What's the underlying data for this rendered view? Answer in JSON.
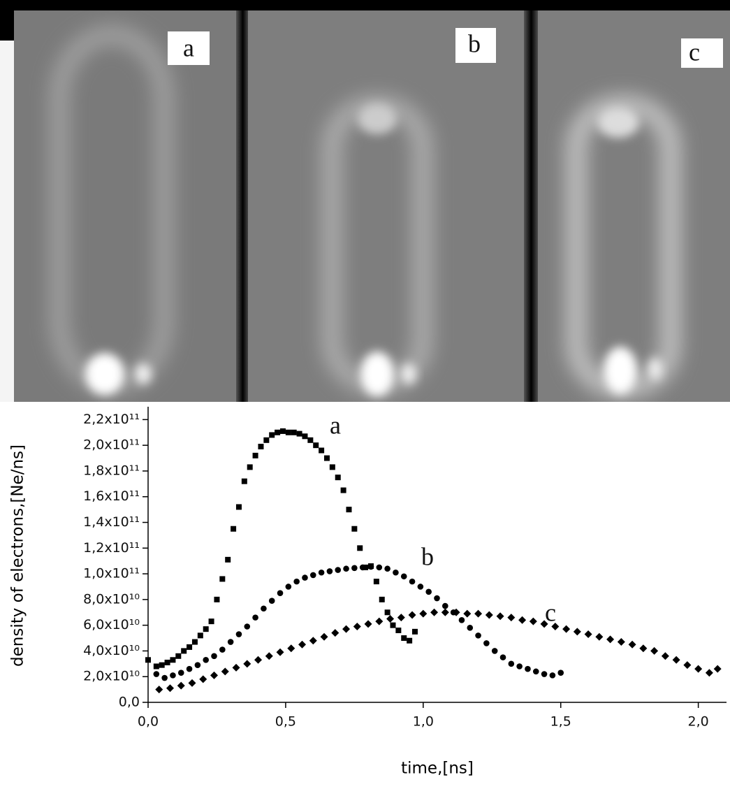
{
  "images": [
    {
      "label": "a"
    },
    {
      "label": "b"
    },
    {
      "label": "c"
    }
  ],
  "chart_data": {
    "type": "scatter",
    "xlabel": "time,[ns]",
    "ylabel": "density of electrons,[Ne/ns]",
    "xlim": [
      0,
      2.1
    ],
    "ylim": [
      0,
      230000000000.0
    ],
    "xticks": [
      {
        "value": 0,
        "label": "0,0"
      },
      {
        "value": 0.5,
        "label": "0,5"
      },
      {
        "value": 1.0,
        "label": "1,0"
      },
      {
        "value": 1.5,
        "label": "1,5"
      },
      {
        "value": 2.0,
        "label": "2,0"
      }
    ],
    "yticks": [
      {
        "value": 0,
        "label": "0,0"
      },
      {
        "value": 20000000000.0,
        "label": "2,0x10¹⁰"
      },
      {
        "value": 40000000000.0,
        "label": "4,0x10¹⁰"
      },
      {
        "value": 60000000000.0,
        "label": "6,0x10¹⁰"
      },
      {
        "value": 80000000000.0,
        "label": "8,0x10¹⁰"
      },
      {
        "value": 100000000000.0,
        "label": "1,0x10¹¹"
      },
      {
        "value": 120000000000.0,
        "label": "1,2x10¹¹"
      },
      {
        "value": 140000000000.0,
        "label": "1,4x10¹¹"
      },
      {
        "value": 160000000000.0,
        "label": "1,6x10¹¹"
      },
      {
        "value": 180000000000.0,
        "label": "1,8x10¹¹"
      },
      {
        "value": 200000000000.0,
        "label": "2,0x10¹¹"
      },
      {
        "value": 220000000000.0,
        "label": "2,2x10¹¹"
      }
    ],
    "series": [
      {
        "name": "a",
        "marker": "square",
        "color": "#000000",
        "x": [
          0.0,
          0.03,
          0.05,
          0.07,
          0.09,
          0.11,
          0.13,
          0.15,
          0.17,
          0.19,
          0.21,
          0.23,
          0.25,
          0.27,
          0.29,
          0.31,
          0.33,
          0.35,
          0.37,
          0.39,
          0.41,
          0.43,
          0.45,
          0.47,
          0.49,
          0.51,
          0.53,
          0.55,
          0.57,
          0.59,
          0.61,
          0.63,
          0.65,
          0.67,
          0.69,
          0.71,
          0.73,
          0.75,
          0.77,
          0.79,
          0.81,
          0.83,
          0.85,
          0.87,
          0.89,
          0.91,
          0.93,
          0.95,
          0.97
        ],
        "values": [
          33000000000.0,
          28000000000.0,
          29000000000.0,
          31000000000.0,
          33000000000.0,
          36000000000.0,
          40000000000.0,
          43000000000.0,
          47000000000.0,
          52000000000.0,
          57000000000.0,
          63000000000.0,
          80000000000.0,
          96000000000.0,
          111000000000.0,
          135000000000.0,
          152000000000.0,
          172000000000.0,
          183000000000.0,
          192000000000.0,
          199000000000.0,
          204000000000.0,
          208000000000.0,
          210000000000.0,
          211000000000.0,
          210000000000.0,
          210000000000.0,
          209000000000.0,
          207000000000.0,
          204000000000.0,
          200000000000.0,
          196000000000.0,
          190000000000.0,
          183000000000.0,
          175000000000.0,
          165000000000.0,
          150000000000.0,
          135000000000.0,
          120000000000.0,
          105000000000.0,
          106000000000.0,
          94000000000.0,
          80000000000.0,
          70000000000.0,
          60000000000.0,
          56000000000.0,
          50000000000.0,
          48000000000.0,
          55000000000.0
        ]
      },
      {
        "name": "b",
        "marker": "circle",
        "color": "#000000",
        "x": [
          0.03,
          0.06,
          0.09,
          0.12,
          0.15,
          0.18,
          0.21,
          0.24,
          0.27,
          0.3,
          0.33,
          0.36,
          0.39,
          0.42,
          0.45,
          0.48,
          0.51,
          0.54,
          0.57,
          0.6,
          0.63,
          0.66,
          0.69,
          0.72,
          0.75,
          0.78,
          0.81,
          0.84,
          0.87,
          0.9,
          0.93,
          0.96,
          0.99,
          1.02,
          1.05,
          1.08,
          1.11,
          1.14,
          1.17,
          1.2,
          1.23,
          1.26,
          1.29,
          1.32,
          1.35,
          1.38,
          1.41,
          1.44,
          1.47,
          1.5
        ],
        "values": [
          22000000000.0,
          19000000000.0,
          21000000000.0,
          23000000000.0,
          26000000000.0,
          29000000000.0,
          33000000000.0,
          36000000000.0,
          41000000000.0,
          47000000000.0,
          53000000000.0,
          59000000000.0,
          66000000000.0,
          73000000000.0,
          79000000000.0,
          85000000000.0,
          90000000000.0,
          94000000000.0,
          97000000000.0,
          99000000000.0,
          101000000000.0,
          102000000000.0,
          103000000000.0,
          104000000000.0,
          104500000000.0,
          105000000000.0,
          105500000000.0,
          105000000000.0,
          104000000000.0,
          101000000000.0,
          98000000000.0,
          94000000000.0,
          90000000000.0,
          86000000000.0,
          81000000000.0,
          75000000000.0,
          70000000000.0,
          64000000000.0,
          58000000000.0,
          52000000000.0,
          46000000000.0,
          40000000000.0,
          35000000000.0,
          30000000000.0,
          28000000000.0,
          26000000000.0,
          24000000000.0,
          22000000000.0,
          21000000000.0,
          23000000000.0
        ]
      },
      {
        "name": "c",
        "marker": "diamond",
        "color": "#000000",
        "x": [
          0.04,
          0.08,
          0.12,
          0.16,
          0.2,
          0.24,
          0.28,
          0.32,
          0.36,
          0.4,
          0.44,
          0.48,
          0.52,
          0.56,
          0.6,
          0.64,
          0.68,
          0.72,
          0.76,
          0.8,
          0.84,
          0.88,
          0.92,
          0.96,
          1.0,
          1.04,
          1.08,
          1.12,
          1.16,
          1.2,
          1.24,
          1.28,
          1.32,
          1.36,
          1.4,
          1.44,
          1.48,
          1.52,
          1.56,
          1.6,
          1.64,
          1.68,
          1.72,
          1.76,
          1.8,
          1.84,
          1.88,
          1.92,
          1.96,
          2.0,
          2.04,
          2.07
        ],
        "values": [
          10000000000.0,
          11000000000.0,
          13000000000.0,
          15000000000.0,
          18000000000.0,
          21000000000.0,
          24000000000.0,
          27000000000.0,
          30000000000.0,
          33000000000.0,
          36000000000.0,
          39000000000.0,
          42000000000.0,
          45000000000.0,
          48000000000.0,
          51000000000.0,
          54000000000.0,
          57000000000.0,
          59000000000.0,
          61000000000.0,
          63000000000.0,
          65000000000.0,
          66000000000.0,
          68000000000.0,
          69000000000.0,
          70000000000.0,
          70000000000.0,
          70000000000.0,
          69000000000.0,
          69000000000.0,
          68000000000.0,
          67000000000.0,
          66000000000.0,
          64000000000.0,
          63000000000.0,
          61000000000.0,
          59000000000.0,
          57000000000.0,
          55000000000.0,
          53000000000.0,
          51000000000.0,
          49000000000.0,
          47000000000.0,
          45000000000.0,
          42000000000.0,
          40000000000.0,
          36000000000.0,
          33000000000.0,
          29000000000.0,
          26000000000.0,
          23000000000.0,
          26000000000.0
        ]
      }
    ]
  }
}
